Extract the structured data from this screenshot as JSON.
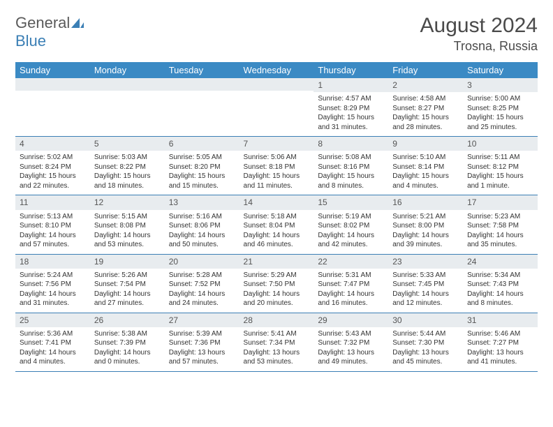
{
  "logo": {
    "part1": "General",
    "part2": "Blue"
  },
  "title": "August 2024",
  "location": "Trosna, Russia",
  "colors": {
    "header_bg": "#3b8ac4",
    "header_text": "#ffffff",
    "daynum_bg": "#e8ecef",
    "row_border": "#3b7fb5",
    "logo_gray": "#5a5a5a",
    "logo_blue": "#3b7fb5"
  },
  "weekdays": [
    "Sunday",
    "Monday",
    "Tuesday",
    "Wednesday",
    "Thursday",
    "Friday",
    "Saturday"
  ],
  "weeks": [
    [
      null,
      null,
      null,
      null,
      {
        "n": "1",
        "sr": "Sunrise: 4:57 AM",
        "ss": "Sunset: 8:29 PM",
        "dl": "Daylight: 15 hours and 31 minutes."
      },
      {
        "n": "2",
        "sr": "Sunrise: 4:58 AM",
        "ss": "Sunset: 8:27 PM",
        "dl": "Daylight: 15 hours and 28 minutes."
      },
      {
        "n": "3",
        "sr": "Sunrise: 5:00 AM",
        "ss": "Sunset: 8:25 PM",
        "dl": "Daylight: 15 hours and 25 minutes."
      }
    ],
    [
      {
        "n": "4",
        "sr": "Sunrise: 5:02 AM",
        "ss": "Sunset: 8:24 PM",
        "dl": "Daylight: 15 hours and 22 minutes."
      },
      {
        "n": "5",
        "sr": "Sunrise: 5:03 AM",
        "ss": "Sunset: 8:22 PM",
        "dl": "Daylight: 15 hours and 18 minutes."
      },
      {
        "n": "6",
        "sr": "Sunrise: 5:05 AM",
        "ss": "Sunset: 8:20 PM",
        "dl": "Daylight: 15 hours and 15 minutes."
      },
      {
        "n": "7",
        "sr": "Sunrise: 5:06 AM",
        "ss": "Sunset: 8:18 PM",
        "dl": "Daylight: 15 hours and 11 minutes."
      },
      {
        "n": "8",
        "sr": "Sunrise: 5:08 AM",
        "ss": "Sunset: 8:16 PM",
        "dl": "Daylight: 15 hours and 8 minutes."
      },
      {
        "n": "9",
        "sr": "Sunrise: 5:10 AM",
        "ss": "Sunset: 8:14 PM",
        "dl": "Daylight: 15 hours and 4 minutes."
      },
      {
        "n": "10",
        "sr": "Sunrise: 5:11 AM",
        "ss": "Sunset: 8:12 PM",
        "dl": "Daylight: 15 hours and 1 minute."
      }
    ],
    [
      {
        "n": "11",
        "sr": "Sunrise: 5:13 AM",
        "ss": "Sunset: 8:10 PM",
        "dl": "Daylight: 14 hours and 57 minutes."
      },
      {
        "n": "12",
        "sr": "Sunrise: 5:15 AM",
        "ss": "Sunset: 8:08 PM",
        "dl": "Daylight: 14 hours and 53 minutes."
      },
      {
        "n": "13",
        "sr": "Sunrise: 5:16 AM",
        "ss": "Sunset: 8:06 PM",
        "dl": "Daylight: 14 hours and 50 minutes."
      },
      {
        "n": "14",
        "sr": "Sunrise: 5:18 AM",
        "ss": "Sunset: 8:04 PM",
        "dl": "Daylight: 14 hours and 46 minutes."
      },
      {
        "n": "15",
        "sr": "Sunrise: 5:19 AM",
        "ss": "Sunset: 8:02 PM",
        "dl": "Daylight: 14 hours and 42 minutes."
      },
      {
        "n": "16",
        "sr": "Sunrise: 5:21 AM",
        "ss": "Sunset: 8:00 PM",
        "dl": "Daylight: 14 hours and 39 minutes."
      },
      {
        "n": "17",
        "sr": "Sunrise: 5:23 AM",
        "ss": "Sunset: 7:58 PM",
        "dl": "Daylight: 14 hours and 35 minutes."
      }
    ],
    [
      {
        "n": "18",
        "sr": "Sunrise: 5:24 AM",
        "ss": "Sunset: 7:56 PM",
        "dl": "Daylight: 14 hours and 31 minutes."
      },
      {
        "n": "19",
        "sr": "Sunrise: 5:26 AM",
        "ss": "Sunset: 7:54 PM",
        "dl": "Daylight: 14 hours and 27 minutes."
      },
      {
        "n": "20",
        "sr": "Sunrise: 5:28 AM",
        "ss": "Sunset: 7:52 PM",
        "dl": "Daylight: 14 hours and 24 minutes."
      },
      {
        "n": "21",
        "sr": "Sunrise: 5:29 AM",
        "ss": "Sunset: 7:50 PM",
        "dl": "Daylight: 14 hours and 20 minutes."
      },
      {
        "n": "22",
        "sr": "Sunrise: 5:31 AM",
        "ss": "Sunset: 7:47 PM",
        "dl": "Daylight: 14 hours and 16 minutes."
      },
      {
        "n": "23",
        "sr": "Sunrise: 5:33 AM",
        "ss": "Sunset: 7:45 PM",
        "dl": "Daylight: 14 hours and 12 minutes."
      },
      {
        "n": "24",
        "sr": "Sunrise: 5:34 AM",
        "ss": "Sunset: 7:43 PM",
        "dl": "Daylight: 14 hours and 8 minutes."
      }
    ],
    [
      {
        "n": "25",
        "sr": "Sunrise: 5:36 AM",
        "ss": "Sunset: 7:41 PM",
        "dl": "Daylight: 14 hours and 4 minutes."
      },
      {
        "n": "26",
        "sr": "Sunrise: 5:38 AM",
        "ss": "Sunset: 7:39 PM",
        "dl": "Daylight: 14 hours and 0 minutes."
      },
      {
        "n": "27",
        "sr": "Sunrise: 5:39 AM",
        "ss": "Sunset: 7:36 PM",
        "dl": "Daylight: 13 hours and 57 minutes."
      },
      {
        "n": "28",
        "sr": "Sunrise: 5:41 AM",
        "ss": "Sunset: 7:34 PM",
        "dl": "Daylight: 13 hours and 53 minutes."
      },
      {
        "n": "29",
        "sr": "Sunrise: 5:43 AM",
        "ss": "Sunset: 7:32 PM",
        "dl": "Daylight: 13 hours and 49 minutes."
      },
      {
        "n": "30",
        "sr": "Sunrise: 5:44 AM",
        "ss": "Sunset: 7:30 PM",
        "dl": "Daylight: 13 hours and 45 minutes."
      },
      {
        "n": "31",
        "sr": "Sunrise: 5:46 AM",
        "ss": "Sunset: 7:27 PM",
        "dl": "Daylight: 13 hours and 41 minutes."
      }
    ]
  ]
}
